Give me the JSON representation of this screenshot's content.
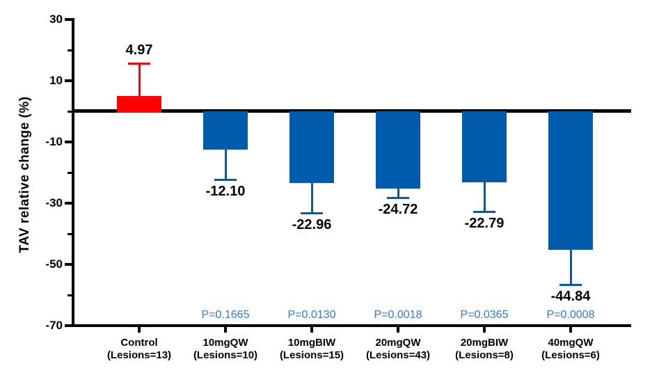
{
  "figure": {
    "background": "#ffffff"
  },
  "chart_data": {
    "type": "bar",
    "title": "",
    "xlabel": "",
    "ylabel": "TAV relative change (%)",
    "ylim": [
      -70,
      30
    ],
    "y_major_ticks": [
      30,
      10,
      -10,
      -30,
      -50,
      -70
    ],
    "y_minor_ticks": [
      20,
      0,
      -20,
      -40,
      -60
    ],
    "grid": false,
    "legend": "none",
    "baseline": 0,
    "bars": [
      {
        "category_line1": "Control",
        "category_line2": "(Lesions=13)",
        "value": 4.97,
        "value_label": "4.97",
        "error": 10.2,
        "p_label": "",
        "color": "#FF0000"
      },
      {
        "category_line1": "10mgQW",
        "category_line2": "(Lesions=10)",
        "value": -12.1,
        "value_label": "-12.10",
        "error": 9.9,
        "p_label": "P=0.1665",
        "color": "#005BAC"
      },
      {
        "category_line1": "10mgBIW",
        "category_line2": "(Lesions=15)",
        "value": -22.96,
        "value_label": "-22.96",
        "error": 10.0,
        "p_label": "P=0.0130",
        "color": "#005BAC"
      },
      {
        "category_line1": "20mgQW",
        "category_line2": "(Lesions=43)",
        "value": -24.72,
        "value_label": "-24.72",
        "error": 3.3,
        "p_label": "P=0.0018",
        "color": "#005BAC"
      },
      {
        "category_line1": "20mgBIW",
        "category_line2": "(Lesions=8)",
        "value": -22.79,
        "value_label": "-22.79",
        "error": 9.7,
        "p_label": "P=0.0365",
        "color": "#005BAC"
      },
      {
        "category_line1": "40mgQW",
        "category_line2": "(Lesions=6)",
        "value": -44.84,
        "value_label": "-44.84",
        "error": 11.5,
        "p_label": "P=0.0008",
        "color": "#005BAC"
      }
    ],
    "colors": {
      "control_bar": "#FF0000",
      "treatment_bar": "#005BAC",
      "p_value_text": "#3677C9",
      "axis": "#000000",
      "text": "#000000"
    }
  }
}
